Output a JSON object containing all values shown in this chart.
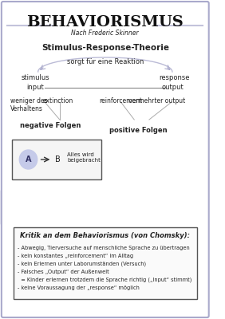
{
  "title": "BEHAVIORISMUS",
  "subtitle": "Nach Frederic Skinner",
  "section1": "Stimulus-Response-Theorie",
  "arc_label": "sorgt für eine Reaktion",
  "left_col": [
    "stimulus",
    "input"
  ],
  "right_col": [
    "response",
    "output"
  ],
  "row3_left": "weniger des\nVerhaltens",
  "row3_mid_left": "extinction",
  "row3_mid_right": "reinforcement",
  "row3_right": "vermehrter output",
  "neg_label": "negative Folgen",
  "pos_label": "positive Folgen",
  "box_label": "Alles wird\nbeigebracht",
  "box_circles": [
    "A",
    "B"
  ],
  "kritik_title": "Kritik an dem Behaviorismus (von Chomsky):",
  "kritik_lines": [
    "- Abwegig, Tierversuche auf menschliche Sprache zu übertragen",
    "- kein konstantes „reinforcement“ im Alltag",
    "- kein Erlernen unter Laborumständen (Versuch)",
    "- Falsches „Output“ der Außenwelt",
    "  = Kinder erlernen trotzdem die Sprache richtig („Input“ stimmt)",
    "- keine Voraussagung der „response“ möglich"
  ],
  "bg_color": "#ffffff",
  "border_color": "#aaaacc",
  "title_color": "#111111",
  "text_color": "#222222",
  "arc_color": "#aaaacc",
  "line_color": "#888888",
  "box_bg": "#e8eaf6",
  "circle_color": "#c5cae9"
}
